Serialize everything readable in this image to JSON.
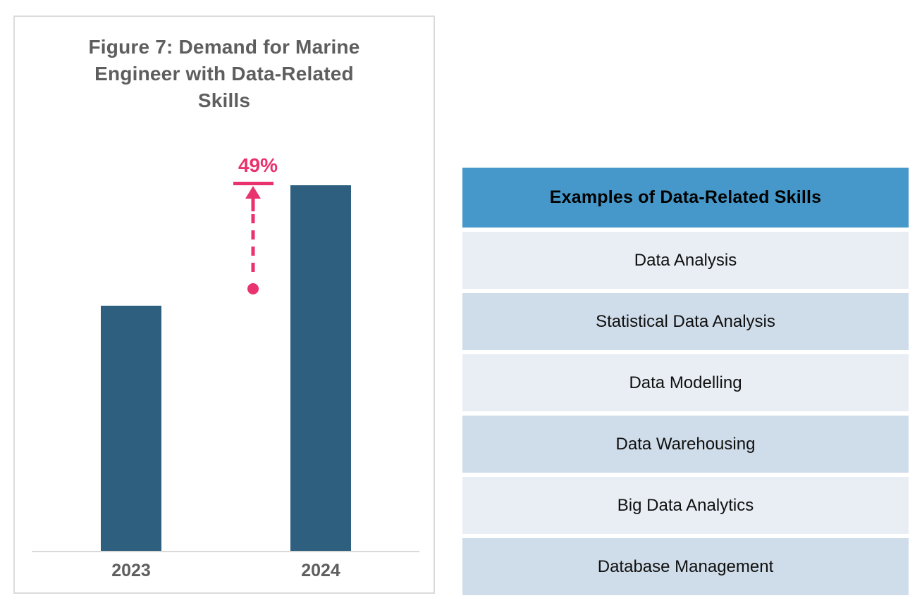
{
  "chart_data": {
    "type": "bar",
    "title": "Figure 7: Demand for Marine Engineer with Data-Related Skills",
    "categories": [
      "2023",
      "2024"
    ],
    "values": [
      100,
      149
    ],
    "values_note": "no numeric axis shown; bar heights imply 2024 is ~1.49x the 2023 bar",
    "annotation_label": "49%",
    "xlabel": "",
    "ylabel": "",
    "grid": false,
    "legend": false,
    "bar_color": "#2F5F7E",
    "annotation_color": "#E8336E"
  },
  "table": {
    "header": "Examples of Data-Related Skills",
    "rows": [
      "Data Analysis",
      "Statistical Data Analysis",
      "Data Modelling",
      "Data Warehousing",
      "Big Data Analytics",
      "Database Management"
    ]
  },
  "colors": {
    "bar": "#2F5F7E",
    "annotation_pink": "#E8336E",
    "table_header_bg": "#4598C9",
    "table_row_alt1": "#CFDCE9",
    "table_row_alt2": "#E8EEF4",
    "title_text": "#5E5E5E"
  }
}
